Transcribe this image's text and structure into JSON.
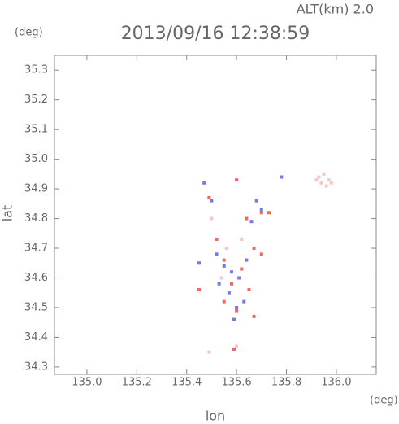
{
  "chart_data": {
    "type": "scatter",
    "title": "2013/09/16 12:38:59",
    "annotation": "ALT(km) 2.0",
    "y_unit": "(deg)",
    "x_unit": "(deg)",
    "x_label": "lon",
    "y_label": "lat",
    "xlim": [
      134.87,
      136.16
    ],
    "ylim": [
      34.275,
      35.35
    ],
    "xticks": [
      {
        "value": 135,
        "label": "135.0"
      },
      135.2,
      135.4,
      135.6,
      135.8,
      {
        "value": 136,
        "label": "136.0"
      }
    ],
    "yticks": [
      34.3,
      34.4,
      34.5,
      34.6,
      34.7,
      34.8,
      34.9,
      {
        "value": 35,
        "label": "35.0"
      },
      35.1,
      35.2,
      35.3
    ],
    "series": [
      {
        "color": "#f5c6c6",
        "x": [
          135.93,
          135.95,
          135.97,
          135.94,
          135.96,
          135.92,
          135.98,
          135.5,
          135.56,
          135.62,
          135.54,
          135.6,
          135.49
        ],
        "y": [
          34.94,
          34.95,
          34.93,
          34.92,
          34.91,
          34.93,
          34.92,
          34.8,
          34.7,
          34.73,
          34.6,
          34.37,
          34.35
        ]
      },
      {
        "color": "#7878ee",
        "x": [
          135.47,
          135.55,
          135.58,
          135.53,
          135.6,
          135.63,
          135.68,
          135.66,
          135.7,
          135.52,
          135.57,
          135.45,
          135.61,
          135.78,
          135.5,
          135.64,
          135.59
        ],
        "y": [
          34.92,
          34.64,
          34.62,
          34.58,
          34.5,
          34.52,
          34.86,
          34.79,
          34.83,
          34.68,
          34.55,
          34.65,
          34.6,
          34.94,
          34.86,
          34.66,
          34.46
        ]
      },
      {
        "color": "#ee6666",
        "x": [
          135.6,
          135.49,
          135.7,
          135.73,
          135.64,
          135.67,
          135.7,
          135.55,
          135.62,
          135.58,
          135.55,
          135.6,
          135.67,
          135.45,
          135.59,
          135.52,
          135.65
        ],
        "y": [
          34.93,
          34.87,
          34.82,
          34.82,
          34.8,
          34.7,
          34.68,
          34.66,
          34.63,
          34.58,
          34.52,
          34.49,
          34.47,
          34.56,
          34.36,
          34.73,
          34.56
        ]
      }
    ]
  }
}
